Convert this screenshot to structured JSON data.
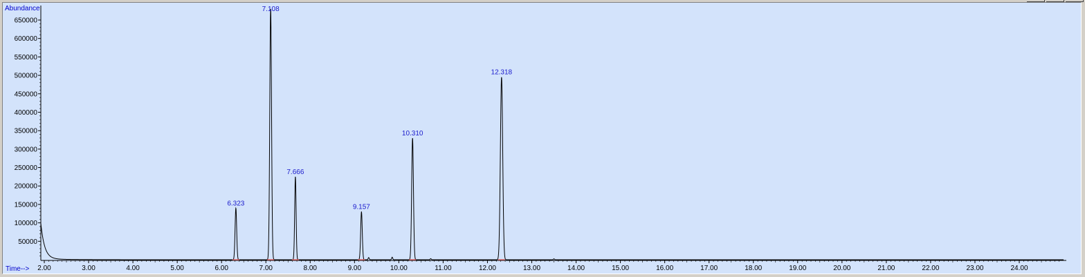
{
  "chart_data": {
    "type": "line",
    "title": "",
    "ylabel": "Abundance",
    "xlabel": "Time-->",
    "xlim": [
      1.9,
      25.0
    ],
    "ylim": [
      0,
      690000
    ],
    "x_ticks": [
      2.0,
      3.0,
      4.0,
      5.0,
      6.0,
      7.0,
      8.0,
      9.0,
      10.0,
      11.0,
      12.0,
      13.0,
      14.0,
      15.0,
      16.0,
      17.0,
      18.0,
      19.0,
      20.0,
      21.0,
      22.0,
      23.0,
      24.0
    ],
    "x_tick_labels": [
      "2.00",
      "3.00",
      "4.00",
      "5.00",
      "6.00",
      "7.00",
      "8.00",
      "9.00",
      "10.00",
      "11.00",
      "12.00",
      "13.00",
      "14.00",
      "15.00",
      "16.00",
      "17.00",
      "18.00",
      "19.00",
      "20.00",
      "21.00",
      "22.00",
      "23.00",
      "24.00"
    ],
    "y_ticks": [
      50000,
      100000,
      150000,
      200000,
      250000,
      300000,
      350000,
      400000,
      450000,
      500000,
      550000,
      600000,
      650000
    ],
    "y_tick_labels": [
      "50000",
      "100000",
      "150000",
      "200000",
      "250000",
      "300000",
      "350000",
      "400000",
      "450000",
      "500000",
      "550000",
      "600000",
      "650000"
    ],
    "grid": false,
    "line_color": "#000000",
    "baseline_marker_color": "#e06060",
    "peaks": [
      {
        "rt": 6.323,
        "label": "6.323",
        "abundance": 140000,
        "width": 0.018
      },
      {
        "rt": 7.108,
        "label": "7.108",
        "abundance": 680000,
        "width": 0.02
      },
      {
        "rt": 7.666,
        "label": "7.666",
        "abundance": 225000,
        "width": 0.016
      },
      {
        "rt": 9.157,
        "label": "9.157",
        "abundance": 130000,
        "width": 0.018
      },
      {
        "rt": 10.31,
        "label": "10.310",
        "abundance": 330000,
        "width": 0.02
      },
      {
        "rt": 12.318,
        "label": "12.318",
        "abundance": 495000,
        "width": 0.026
      }
    ],
    "initial_abundance": 125000,
    "minor_bumps": [
      {
        "rt": 9.32,
        "abundance": 6000
      },
      {
        "rt": 9.85,
        "abundance": 7000
      },
      {
        "rt": 10.72,
        "abundance": 3000
      },
      {
        "rt": 13.5,
        "abundance": 2500
      }
    ]
  }
}
